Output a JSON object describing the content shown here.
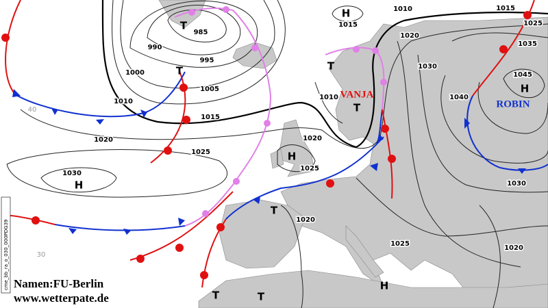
{
  "map": {
    "isobar_labels": [
      985,
      990,
      995,
      1000,
      1005,
      1010,
      1015,
      1020,
      1025,
      1030,
      1010,
      1015,
      1015,
      1025,
      1020,
      1035,
      1030,
      1045,
      1040,
      1010,
      1020,
      1025,
      1030,
      1020,
      1025,
      1020
    ],
    "pressure_centers": [
      "T",
      "H",
      "T",
      "T",
      "T",
      "H",
      "H",
      "H",
      "T",
      "T",
      "T",
      "H"
    ],
    "storm_names": [
      "VANJA",
      "ROBIN"
    ],
    "latitude_labels": [
      40,
      30
    ],
    "credits": {
      "names": "Namen:FU-Berlin",
      "site": "www.wetterpate.de"
    },
    "stamp": "cme_bb_ra_o_030_000PDG39"
  }
}
